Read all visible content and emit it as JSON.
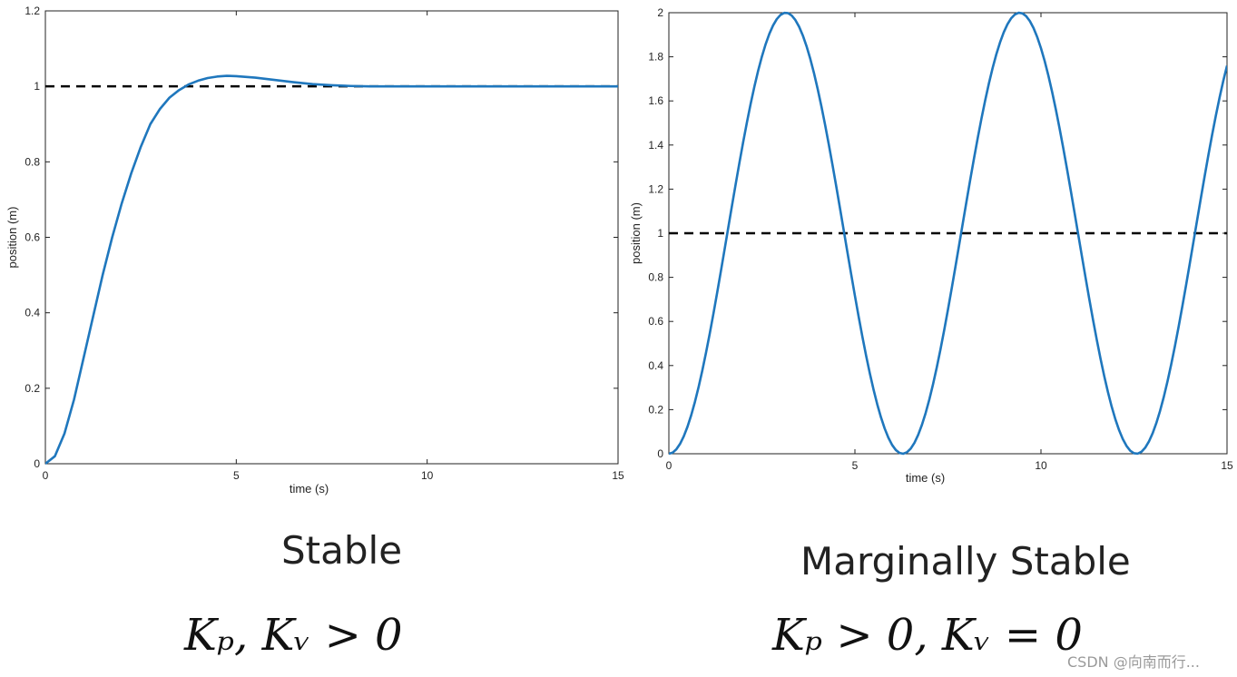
{
  "colors": {
    "curve": "#1f77bd",
    "reference": "#000000",
    "axis": "#222222"
  },
  "chart_data": [
    {
      "type": "line",
      "xlabel": "time (s)",
      "ylabel": "position (m)",
      "xlim": [
        0,
        15
      ],
      "ylim": [
        0,
        1.2
      ],
      "xticks": [
        "0",
        "5",
        "10",
        "15"
      ],
      "yticks": [
        "0",
        "0.2",
        "0.4",
        "0.6",
        "0.8",
        "1",
        "1.2"
      ],
      "reference_line": {
        "y": 1,
        "style": "dashed"
      },
      "series": [
        {
          "x": [
            0,
            0.25,
            0.5,
            0.75,
            1,
            1.25,
            1.5,
            1.75,
            2,
            2.25,
            2.5,
            2.75,
            3,
            3.25,
            3.5,
            3.75,
            4,
            4.25,
            4.5,
            4.75,
            5,
            5.5,
            6,
            6.5,
            7,
            7.5,
            8,
            8.5,
            9,
            10,
            11,
            12,
            13,
            14,
            15
          ],
          "y": [
            0,
            0.02,
            0.08,
            0.17,
            0.28,
            0.39,
            0.5,
            0.6,
            0.69,
            0.77,
            0.84,
            0.9,
            0.94,
            0.97,
            0.99,
            1.005,
            1.015,
            1.022,
            1.026,
            1.028,
            1.027,
            1.023,
            1.017,
            1.011,
            1.006,
            1.003,
            1.001,
            1.0,
            1.0,
            1.0,
            1.0,
            1.0,
            1.0,
            1.0,
            1.0
          ]
        }
      ],
      "caption": "Stable",
      "formula": "Kₚ, Kᵥ > 0"
    },
    {
      "type": "line",
      "xlabel": "time (s)",
      "ylabel": "position (m)",
      "xlim": [
        0,
        15
      ],
      "ylim": [
        0,
        2
      ],
      "xticks": [
        "0",
        "5",
        "10",
        "15"
      ],
      "yticks": [
        "0",
        "0.2",
        "0.4",
        "0.6",
        "0.8",
        "1",
        "1.2",
        "1.4",
        "1.6",
        "1.8",
        "2"
      ],
      "reference_line": {
        "y": 1,
        "style": "dashed"
      },
      "series": [
        {
          "function": "1 - cos(t)",
          "x_range": [
            0,
            15
          ],
          "samples": 151
        }
      ],
      "caption": "Marginally Stable",
      "formula": "Kₚ > 0,   Kᵥ = 0"
    }
  ],
  "watermark": "CSDN @向南而行..."
}
